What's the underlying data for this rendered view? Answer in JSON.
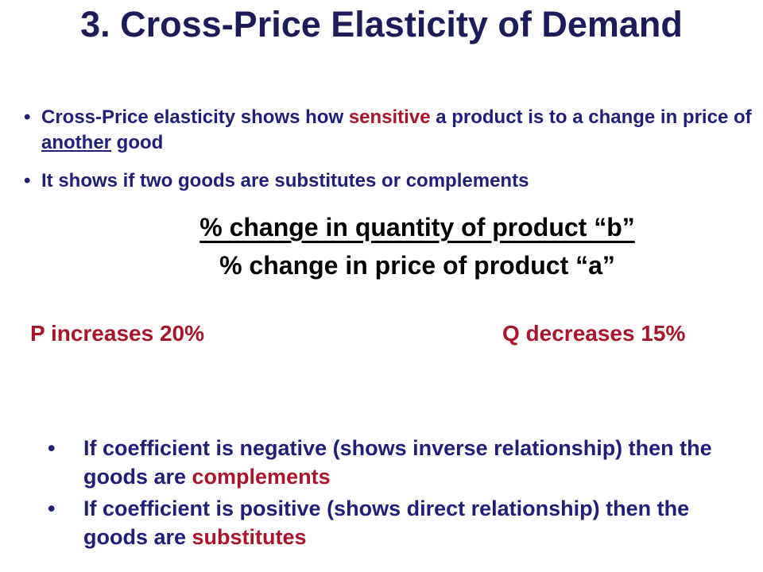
{
  "title": "3. Cross-Price Elasticity of Demand",
  "top_bullets": [
    {
      "parts": [
        "Cross-Price elasticity shows how ",
        "sensitive",
        " a product is to a change in price of ",
        "another",
        " good"
      ]
    },
    {
      "parts": [
        "It shows if two goods are substitutes or complements"
      ]
    }
  ],
  "formula": {
    "numerator": "% change in quantity of product “b”",
    "denominator": "% change in price of product “a”"
  },
  "example": {
    "left": "P increases 20%",
    "right": "Q decreases 15%"
  },
  "bottom_bullets": [
    {
      "parts": [
        "If coefficient is negative (shows inverse relationship) then the goods are ",
        "complements"
      ]
    },
    {
      "parts": [
        "If coefficient is positive (shows direct relationship) then the goods are ",
        "substitutes"
      ]
    }
  ]
}
